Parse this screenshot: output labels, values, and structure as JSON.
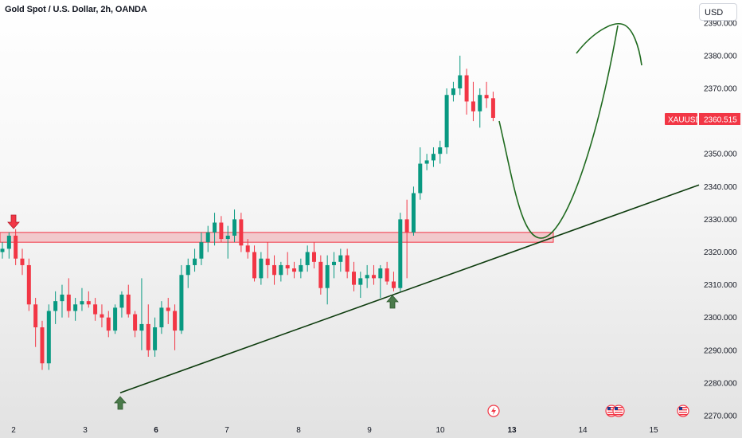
{
  "header": {
    "title": "Gold Spot / U.S. Dollar, 2h, OANDA",
    "currency_button": "USD"
  },
  "symbol_tag": {
    "symbol": "XAUUSD",
    "price": "2360.515",
    "color": "#f23645"
  },
  "colors": {
    "up": "#089981",
    "down": "#f23645",
    "trend": "#0d3b0d",
    "zone_fill": "rgba(242,54,69,0.22)",
    "zone_stroke": "#f23645",
    "arrow": "#4a7a4a"
  },
  "icons": [
    "lightning-icon",
    "us-flag-icon",
    "us-flag-icon",
    "us-flag-icon"
  ],
  "chart_data": {
    "type": "candlestick",
    "title": "Gold Spot / U.S. Dollar, 2h, OANDA",
    "y_axis": {
      "ticks": [
        "2270.000",
        "2280.000",
        "2290.000",
        "2300.000",
        "2310.000",
        "2320.000",
        "2330.000",
        "2340.000",
        "2350.000",
        "2360.000",
        "2370.000",
        "2380.000",
        "2390.000"
      ],
      "ylim": [
        2266,
        2392
      ]
    },
    "x_axis": {
      "ticks": [
        {
          "label": "2",
          "bold": false
        },
        {
          "label": "3",
          "bold": false
        },
        {
          "label": "6",
          "bold": true
        },
        {
          "label": "7",
          "bold": false
        },
        {
          "label": "8",
          "bold": false
        },
        {
          "label": "9",
          "bold": false
        },
        {
          "label": "10",
          "bold": false
        },
        {
          "label": "13",
          "bold": true
        },
        {
          "label": "14",
          "bold": false
        },
        {
          "label": "15",
          "bold": false
        }
      ]
    },
    "candles": [
      [
        2320,
        2323,
        2318,
        2321
      ],
      [
        2321,
        2326,
        2318,
        2325
      ],
      [
        2325,
        2327,
        2316,
        2318
      ],
      [
        2318,
        2321,
        2313,
        2316
      ],
      [
        2316,
        2318,
        2302,
        2304
      ],
      [
        2304,
        2306,
        2291,
        2297
      ],
      [
        2297,
        2299,
        2284,
        2286
      ],
      [
        2286,
        2304,
        2284,
        2302
      ],
      [
        2302,
        2308,
        2298,
        2305
      ],
      [
        2305,
        2310,
        2300,
        2307
      ],
      [
        2307,
        2312,
        2300,
        2302
      ],
      [
        2302,
        2306,
        2299,
        2304
      ],
      [
        2304,
        2309,
        2302,
        2305
      ],
      [
        2305,
        2308,
        2303,
        2304
      ],
      [
        2304,
        2306,
        2299,
        2301
      ],
      [
        2301,
        2304,
        2297,
        2300
      ],
      [
        2300,
        2302,
        2294,
        2296
      ],
      [
        2296,
        2304,
        2295,
        2303
      ],
      [
        2303,
        2308,
        2300,
        2307
      ],
      [
        2307,
        2310,
        2300,
        2301
      ],
      [
        2301,
        2302,
        2294,
        2296
      ],
      [
        2296,
        2312,
        2290,
        2298
      ],
      [
        2298,
        2304,
        2288,
        2290
      ],
      [
        2290,
        2300,
        2288,
        2297
      ],
      [
        2297,
        2305,
        2295,
        2303
      ],
      [
        2303,
        2306,
        2298,
        2302
      ],
      [
        2302,
        2304,
        2290,
        2296
      ],
      [
        2296,
        2316,
        2295,
        2313
      ],
      [
        2313,
        2318,
        2309,
        2316
      ],
      [
        2316,
        2321,
        2314,
        2318
      ],
      [
        2318,
        2326,
        2316,
        2323
      ],
      [
        2323,
        2328,
        2320,
        2326
      ],
      [
        2326,
        2332,
        2322,
        2329
      ],
      [
        2329,
        2331,
        2323,
        2324
      ],
      [
        2324,
        2328,
        2318,
        2325
      ],
      [
        2325,
        2333,
        2323,
        2330
      ],
      [
        2330,
        2332,
        2320,
        2322
      ],
      [
        2322,
        2324,
        2318,
        2320
      ],
      [
        2320,
        2322,
        2311,
        2312
      ],
      [
        2312,
        2320,
        2310,
        2318
      ],
      [
        2318,
        2323,
        2312,
        2316
      ],
      [
        2316,
        2319,
        2310,
        2313
      ],
      [
        2313,
        2317,
        2311,
        2316
      ],
      [
        2316,
        2320,
        2313,
        2315
      ],
      [
        2315,
        2317,
        2312,
        2314
      ],
      [
        2314,
        2318,
        2312,
        2316
      ],
      [
        2316,
        2322,
        2314,
        2320
      ],
      [
        2320,
        2323,
        2315,
        2317
      ],
      [
        2317,
        2319,
        2307,
        2309
      ],
      [
        2309,
        2319,
        2304,
        2316
      ],
      [
        2316,
        2320,
        2312,
        2317
      ],
      [
        2317,
        2321,
        2314,
        2319
      ],
      [
        2319,
        2321,
        2312,
        2314
      ],
      [
        2314,
        2317,
        2308,
        2310
      ],
      [
        2310,
        2314,
        2306,
        2312
      ],
      [
        2312,
        2316,
        2309,
        2313
      ],
      [
        2313,
        2316,
        2310,
        2312
      ],
      [
        2312,
        2316,
        2306,
        2315
      ],
      [
        2315,
        2317,
        2310,
        2311
      ],
      [
        2311,
        2314,
        2308,
        2309
      ],
      [
        2309,
        2332,
        2308,
        2330
      ],
      [
        2330,
        2336,
        2312,
        2326
      ],
      [
        2326,
        2340,
        2325,
        2338
      ],
      [
        2338,
        2352,
        2336,
        2347
      ],
      [
        2347,
        2350,
        2345,
        2348
      ],
      [
        2348,
        2352,
        2346,
        2350
      ],
      [
        2350,
        2354,
        2347,
        2352
      ],
      [
        2352,
        2370,
        2350,
        2368
      ],
      [
        2368,
        2372,
        2366,
        2370
      ],
      [
        2370,
        2380,
        2368,
        2374
      ],
      [
        2374,
        2376,
        2362,
        2366
      ],
      [
        2366,
        2372,
        2360,
        2363
      ],
      [
        2363,
        2370,
        2358,
        2368
      ],
      [
        2368,
        2372,
        2364,
        2367
      ],
      [
        2367,
        2369,
        2360,
        2361
      ]
    ],
    "resistance_zone": [
      2323,
      2326
    ],
    "trendline": {
      "from": {
        "x": "3",
        "y": 2277
      },
      "to_price_at_axis": 2340.5
    },
    "current_price": 2360.515
  }
}
